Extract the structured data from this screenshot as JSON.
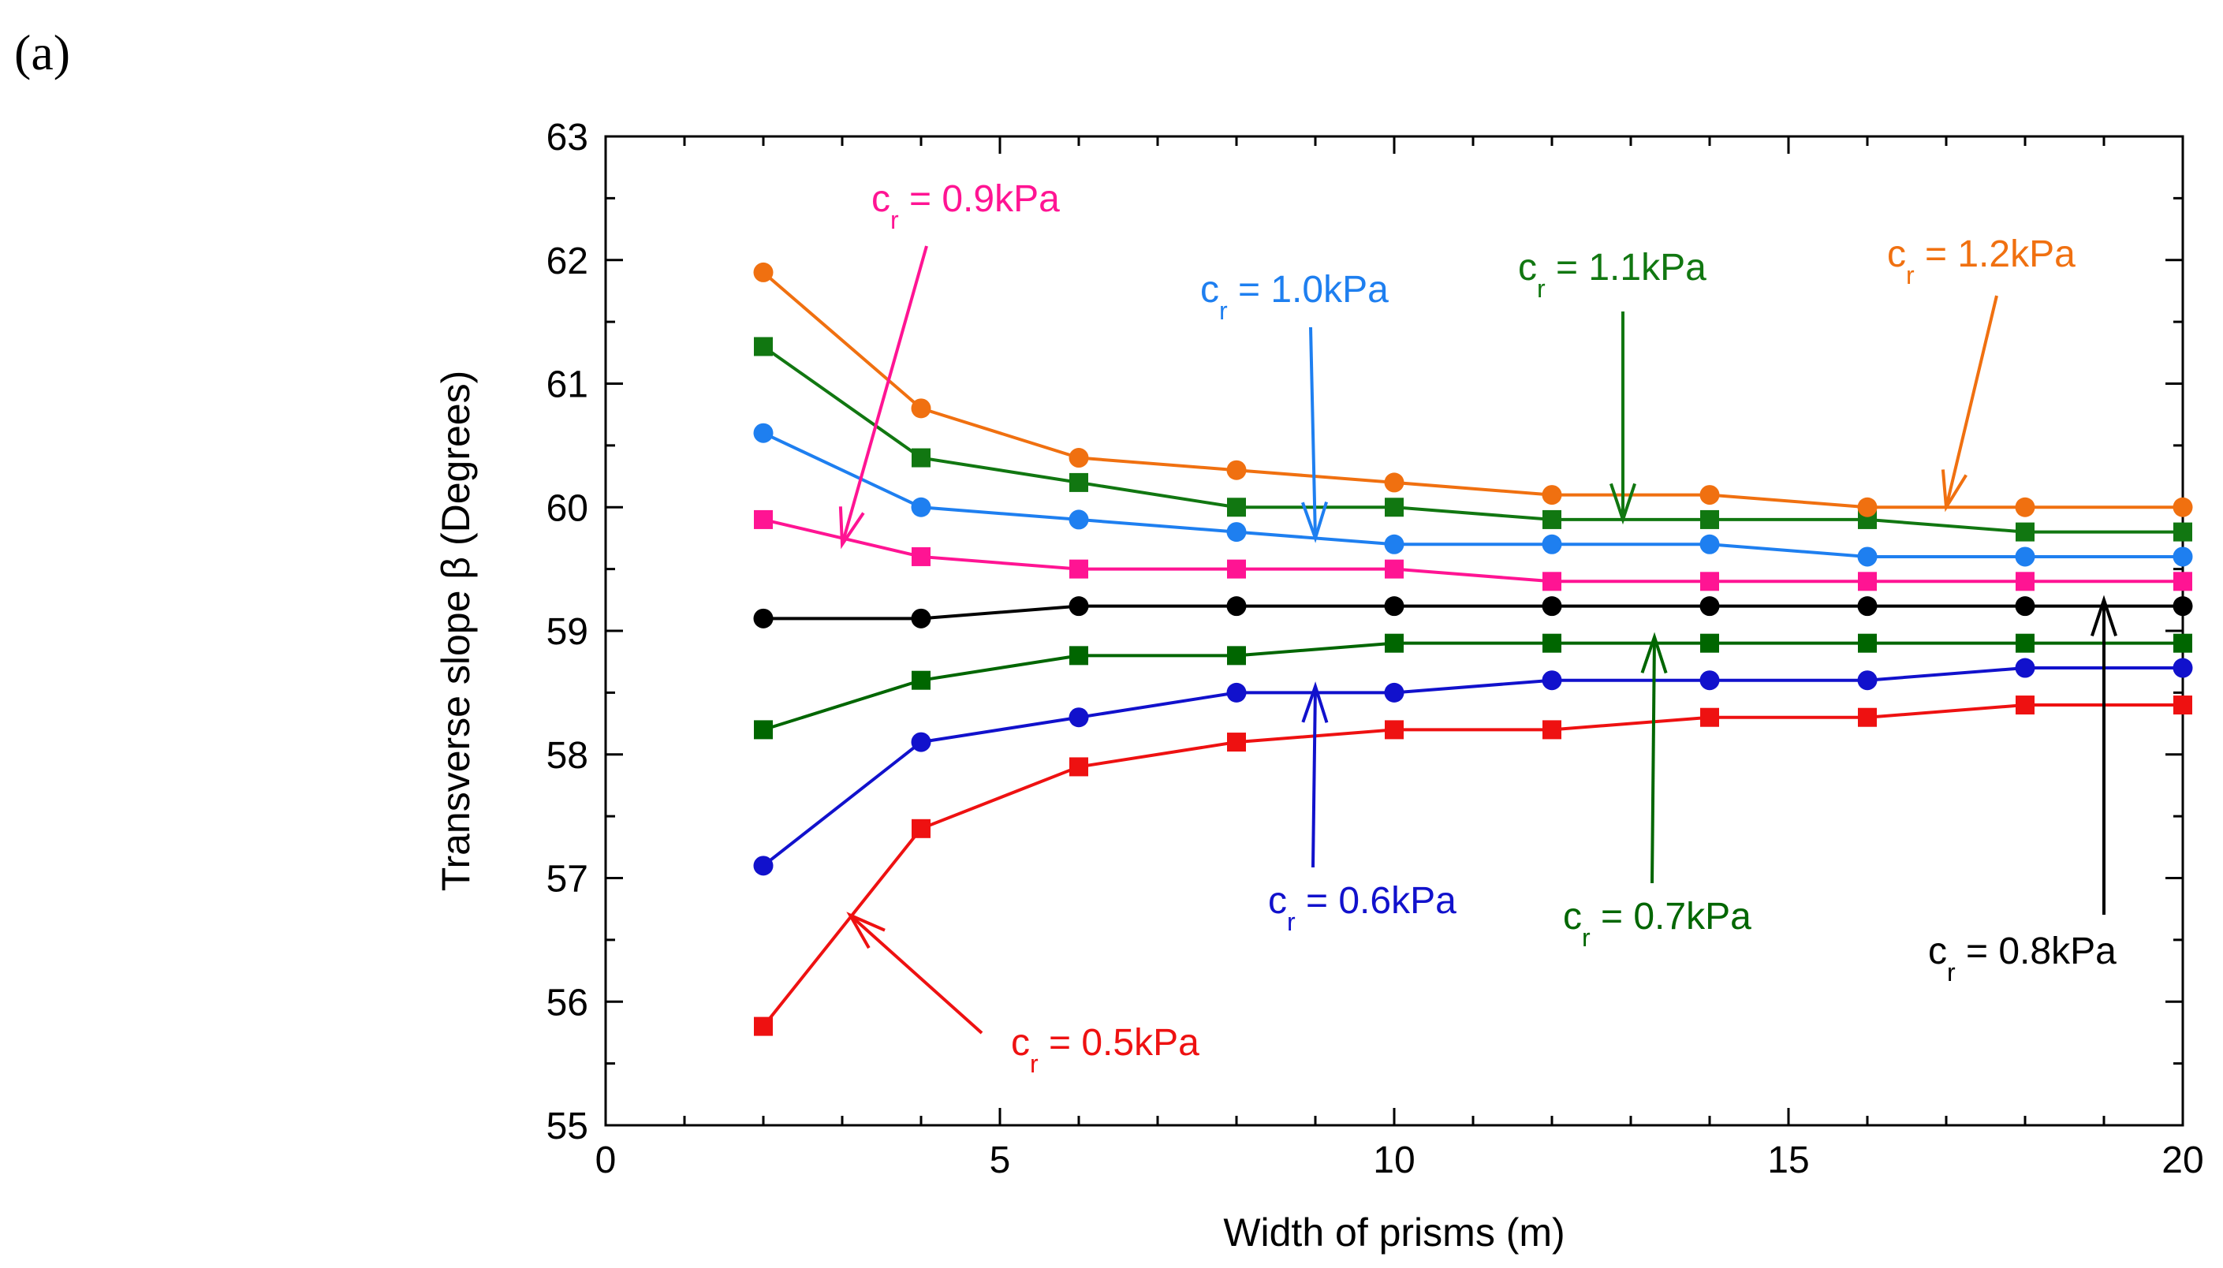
{
  "panel_label": "(a)",
  "chart_data": {
    "type": "line",
    "title": "",
    "xlabel": "Width of prisms (m)",
    "ylabel": "Transverse slope β (Degrees)",
    "xlim": [
      0,
      20
    ],
    "ylim": [
      55,
      63
    ],
    "xticks": [
      "0",
      "5",
      "10",
      "15",
      "20"
    ],
    "yticks": [
      "55",
      "56",
      "57",
      "58",
      "59",
      "60",
      "61",
      "62",
      "63"
    ],
    "grid": false,
    "x": [
      2,
      4,
      6,
      8,
      10,
      12,
      14,
      16,
      18,
      20
    ],
    "series": [
      {
        "name": "0.5kPa",
        "color": "#ee1111",
        "marker": "square",
        "values": [
          55.8,
          57.4,
          57.9,
          58.1,
          58.2,
          58.2,
          58.3,
          58.3,
          58.4,
          58.4
        ]
      },
      {
        "name": "0.6kPa",
        "color": "#1111cc",
        "marker": "circle",
        "values": [
          57.1,
          58.1,
          58.3,
          58.5,
          58.5,
          58.6,
          58.6,
          58.6,
          58.7,
          58.7
        ]
      },
      {
        "name": "0.7kPa",
        "color": "#006600",
        "marker": "square",
        "values": [
          58.2,
          58.6,
          58.8,
          58.8,
          58.9,
          58.9,
          58.9,
          58.9,
          58.9,
          58.9
        ]
      },
      {
        "name": "0.8kPa",
        "color": "#000000",
        "marker": "circle",
        "values": [
          59.1,
          59.1,
          59.2,
          59.2,
          59.2,
          59.2,
          59.2,
          59.2,
          59.2,
          59.2
        ]
      },
      {
        "name": "0.9kPa",
        "color": "#ff1493",
        "marker": "square",
        "values": [
          59.9,
          59.6,
          59.5,
          59.5,
          59.5,
          59.4,
          59.4,
          59.4,
          59.4,
          59.4
        ]
      },
      {
        "name": "1.0kPa",
        "color": "#1e7ff0",
        "marker": "circle",
        "values": [
          60.6,
          60.0,
          59.9,
          59.8,
          59.7,
          59.7,
          59.7,
          59.6,
          59.6,
          59.6
        ]
      },
      {
        "name": "1.1kPa",
        "color": "#117711",
        "marker": "square",
        "values": [
          61.3,
          60.4,
          60.2,
          60.0,
          60.0,
          59.9,
          59.9,
          59.9,
          59.8,
          59.8
        ]
      },
      {
        "name": "1.2kPa",
        "color": "#f07010",
        "marker": "circle",
        "values": [
          61.9,
          60.8,
          60.4,
          60.3,
          60.2,
          60.1,
          60.1,
          60.0,
          60.0,
          60.0
        ]
      }
    ],
    "annotations": [
      {
        "series": "0.5kPa",
        "prefix": "c",
        "sub": "r",
        "text": " = 0.5kPa",
        "arrow_to": [
          3.1,
          56.7
        ]
      },
      {
        "series": "0.6kPa",
        "prefix": "c",
        "sub": "r",
        "text": " = 0.6kPa",
        "arrow_to": [
          9.0,
          58.55
        ]
      },
      {
        "series": "0.7kPa",
        "prefix": "c",
        "sub": "r",
        "text": " = 0.7kPa",
        "arrow_to": [
          13.3,
          58.95
        ]
      },
      {
        "series": "0.8kPa",
        "prefix": "c",
        "sub": "r",
        "text": " = 0.8kPa",
        "arrow_to": [
          19.0,
          59.25
        ]
      },
      {
        "series": "0.9kPa",
        "prefix": "c",
        "sub": "r",
        "text": " = 0.9kPa",
        "arrow_to": [
          3.0,
          59.7
        ]
      },
      {
        "series": "1.0kPa",
        "prefix": "c",
        "sub": "r",
        "text": " = 1.0kPa",
        "arrow_to": [
          9.0,
          59.75
        ]
      },
      {
        "series": "1.1kPa",
        "prefix": "c",
        "sub": "r",
        "text": " = 1.1kPa",
        "arrow_to": [
          12.9,
          59.9
        ]
      },
      {
        "series": "1.2kPa",
        "prefix": "c",
        "sub": "r",
        "text": " = 1.2kPa",
        "arrow_to": [
          17.0,
          60.0
        ]
      }
    ]
  }
}
